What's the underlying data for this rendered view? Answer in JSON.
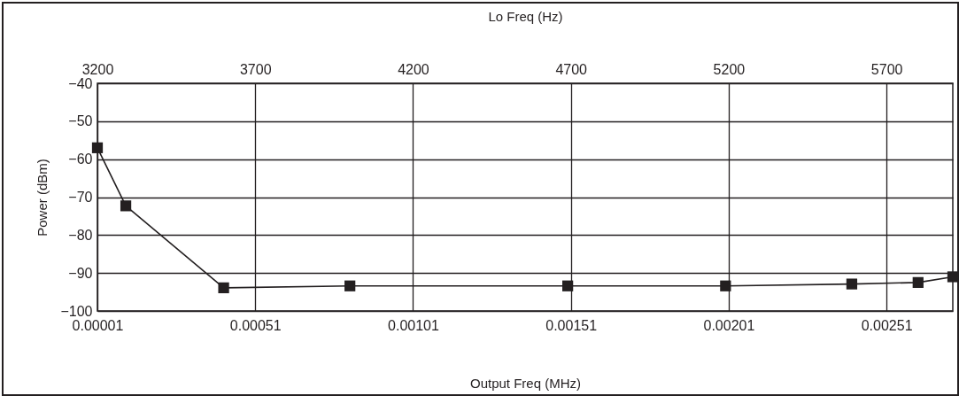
{
  "chart_data": {
    "type": "line",
    "xlabel": "Output Freq (MHz)",
    "x2label": "Lo Freq (Hz)",
    "ylabel": "Power (dBm)",
    "xlim": [
      1e-05,
      0.00272
    ],
    "xticks": [
      {
        "value": 1e-05,
        "label": "0.00001"
      },
      0.00051,
      0.00101,
      0.00151,
      0.00201,
      0.00251
    ],
    "x2lim": [
      3200,
      5910
    ],
    "x2ticks": [
      3200,
      3700,
      4200,
      4700,
      5200,
      5700
    ],
    "ylim": [
      -100,
      -40
    ],
    "yticks": [
      -100,
      -90,
      -80,
      -70,
      -60,
      -50,
      -40
    ],
    "x": [
      1e-05,
      0.0001,
      0.00041,
      0.00081,
      0.0015,
      0.002,
      0.0024,
      0.00261,
      0.00272
    ],
    "series": [
      {
        "color": "#231f20",
        "values": [
          -57,
          -72.3,
          -93.9,
          -93.4,
          -93.4,
          -93.4,
          -92.9,
          -92.5,
          -91
        ]
      }
    ],
    "grid": true,
    "marker": "square",
    "line_style": "solid"
  }
}
